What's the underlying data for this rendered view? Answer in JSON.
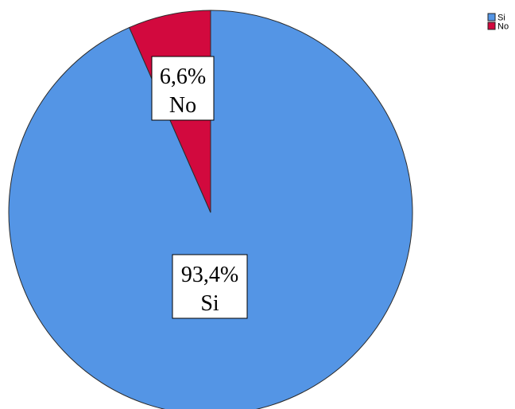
{
  "chart_data": {
    "type": "pie",
    "title": "",
    "categories": [
      "Si",
      "No"
    ],
    "values": [
      93.4,
      6.6
    ],
    "data_labels": [
      {
        "percent": "93,4%",
        "category": "Si"
      },
      {
        "percent": "6,6%",
        "category": "No"
      }
    ],
    "colors": [
      "#5495e5",
      "#d2093e"
    ],
    "legend": {
      "placement": "top-right",
      "entries": [
        "Si",
        "No"
      ]
    }
  }
}
